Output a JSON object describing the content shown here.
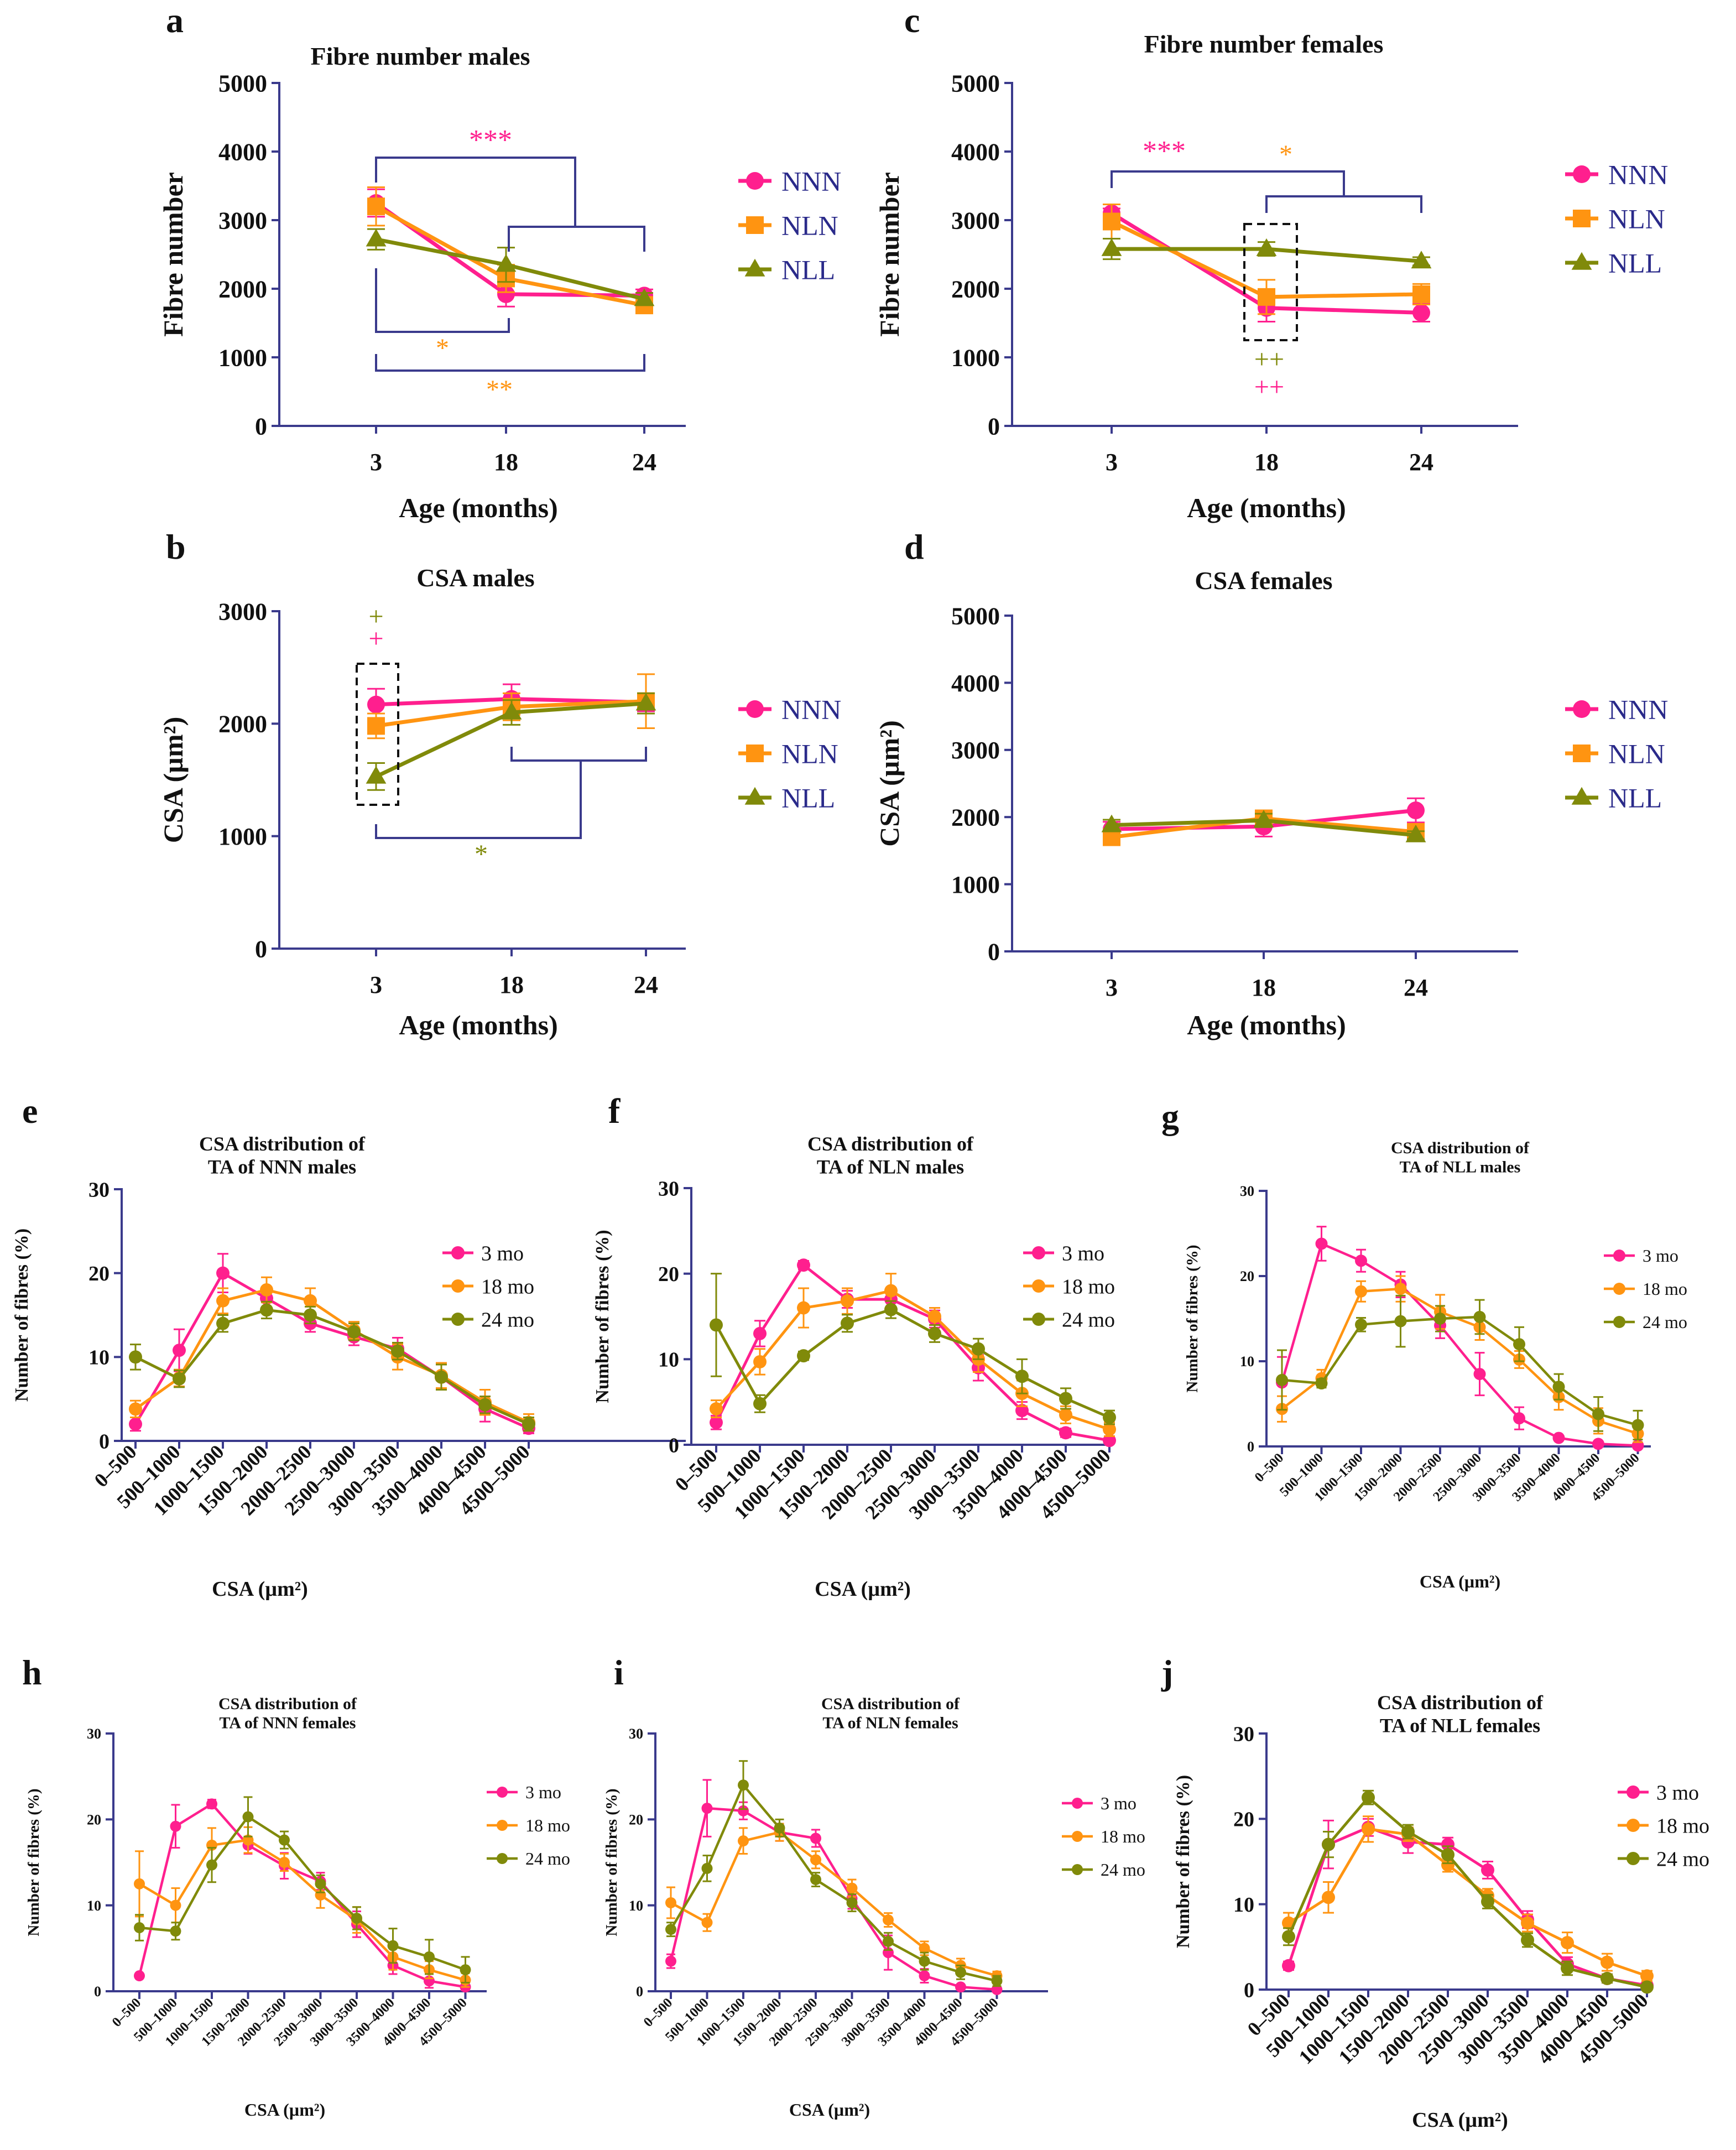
{
  "colors": {
    "NNN": "#ff1f8e",
    "NLN": "#ff9411",
    "NLL": "#808a0a",
    "3 mo": "#ff1f8e",
    "18 mo": "#ff9411",
    "24 mo": "#808a0a",
    "axis": "#3a3a8c",
    "legend_text": "#2a2a8a"
  },
  "chart_data": [
    {
      "id": "a",
      "panel_label": "a",
      "type": "line",
      "title": "Fibre number males",
      "xlabel": "Age (months)",
      "ylabel": "Fibre number",
      "x": [
        "3",
        "18",
        "24"
      ],
      "ylim": [
        0,
        5000
      ],
      "yticks": [
        0,
        1000,
        2000,
        3000,
        4000,
        5000
      ],
      "series": [
        {
          "name": "NNN",
          "marker": "circle",
          "values": [
            3250,
            1920,
            1900
          ],
          "errors": [
            200,
            180,
            90
          ]
        },
        {
          "name": "NLN",
          "marker": "square",
          "values": [
            3200,
            2150,
            1760
          ],
          "errors": [
            280,
            200,
            120
          ]
        },
        {
          "name": "NLL",
          "marker": "triangle",
          "values": [
            2720,
            2350,
            1850
          ],
          "errors": [
            150,
            250,
            90
          ]
        }
      ],
      "annotations": [
        {
          "text": "***",
          "color": "NNN"
        },
        {
          "text": "*",
          "color": "NLN"
        },
        {
          "text": "**",
          "color": "NLN"
        }
      ]
    },
    {
      "id": "b",
      "panel_label": "b",
      "type": "line",
      "title": "CSA males",
      "xlabel": "Age (months)",
      "ylabel": "CSA (µm²)",
      "x": [
        "3",
        "18",
        "24"
      ],
      "ylim": [
        0,
        3000
      ],
      "yticks": [
        0,
        1000,
        2000,
        3000
      ],
      "series": [
        {
          "name": "NNN",
          "marker": "circle",
          "values": [
            2170,
            2220,
            2190
          ],
          "errors": [
            140,
            130,
            80
          ]
        },
        {
          "name": "NLN",
          "marker": "square",
          "values": [
            1980,
            2150,
            2200
          ],
          "errors": [
            110,
            120,
            240
          ]
        },
        {
          "name": "NLL",
          "marker": "triangle",
          "values": [
            1530,
            2100,
            2180
          ],
          "errors": [
            120,
            110,
            90
          ]
        }
      ],
      "annotations": [
        {
          "text": "+",
          "color": "NLL"
        },
        {
          "text": "+",
          "color": "NNN"
        },
        {
          "text": "*",
          "color": "NLL"
        }
      ]
    },
    {
      "id": "c",
      "panel_label": "c",
      "type": "line",
      "title": "Fibre number females",
      "xlabel": "Age (months)",
      "ylabel": "Fibre number",
      "x": [
        "3",
        "18",
        "24"
      ],
      "ylim": [
        0,
        5000
      ],
      "yticks": [
        0,
        1000,
        2000,
        3000,
        4000,
        5000
      ],
      "series": [
        {
          "name": "NNN",
          "marker": "circle",
          "values": [
            3100,
            1720,
            1650
          ],
          "errors": [
            70,
            200,
            130
          ]
        },
        {
          "name": "NLN",
          "marker": "square",
          "values": [
            2980,
            1880,
            1920
          ],
          "errors": [
            250,
            250,
            150
          ]
        },
        {
          "name": "NLL",
          "marker": "triangle",
          "values": [
            2580,
            2580,
            2400
          ],
          "errors": [
            150,
            100,
            60
          ]
        }
      ],
      "annotations": [
        {
          "text": "***",
          "color": "NNN"
        },
        {
          "text": "*",
          "color": "NLN"
        },
        {
          "text": "++",
          "color": "NLL"
        },
        {
          "text": "++",
          "color": "NNN"
        }
      ]
    },
    {
      "id": "d",
      "panel_label": "d",
      "type": "line",
      "title": "CSA females",
      "xlabel": "Age (months)",
      "ylabel": "CSA (µm²)",
      "x": [
        "3",
        "18",
        "24"
      ],
      "ylim": [
        0,
        5000
      ],
      "yticks": [
        0,
        1000,
        2000,
        3000,
        4000,
        5000
      ],
      "series": [
        {
          "name": "NNN",
          "marker": "circle",
          "values": [
            1820,
            1860,
            2100
          ],
          "errors": [
            110,
            150,
            180
          ]
        },
        {
          "name": "NLN",
          "marker": "square",
          "values": [
            1700,
            1980,
            1780
          ],
          "errors": [
            90,
            120,
            80
          ]
        },
        {
          "name": "NLL",
          "marker": "triangle",
          "values": [
            1880,
            1950,
            1730
          ],
          "errors": [
            80,
            100,
            60
          ]
        }
      ]
    },
    {
      "id": "e",
      "panel_label": "e",
      "type": "line",
      "title": "CSA distribution of TA of NNN males",
      "xlabel": "CSA (µm²)",
      "ylabel": "Number of fibres (%)",
      "x": [
        "0–500",
        "500–1000",
        "1000–1500",
        "1500–2000",
        "2000–2500",
        "2500–3000",
        "3000–3500",
        "3500–4000",
        "4000–4500",
        "4500–5000"
      ],
      "ylim": [
        0,
        30
      ],
      "yticks": [
        0,
        10,
        20,
        30
      ],
      "series": [
        {
          "name": "3 mo",
          "values": [
            2.0,
            10.8,
            20.0,
            17.0,
            14.0,
            12.4,
            11.0,
            7.6,
            3.8,
            1.5
          ],
          "errors": [
            0.8,
            2.5,
            2.3,
            1.2,
            1.0,
            1.0,
            1.3,
            1.5,
            1.5,
            0.6
          ]
        },
        {
          "name": "18 mo",
          "values": [
            3.8,
            7.5,
            16.7,
            18.0,
            16.7,
            13.2,
            10.0,
            7.8,
            4.6,
            2.2
          ],
          "errors": [
            1.0,
            1.0,
            1.5,
            1.5,
            1.5,
            1.0,
            1.5,
            1.5,
            1.5,
            1.0
          ]
        },
        {
          "name": "24 mo",
          "values": [
            10.0,
            7.4,
            14.0,
            15.6,
            15.0,
            13.0,
            10.7,
            7.6,
            4.3,
            2.0
          ],
          "errors": [
            1.5,
            1.0,
            1.0,
            1.0,
            1.0,
            1.0,
            1.0,
            1.5,
            1.0,
            0.8
          ]
        }
      ]
    },
    {
      "id": "f",
      "panel_label": "f",
      "type": "line",
      "title": "CSA distribution of TA of NLN males",
      "xlabel": "CSA (µm²)",
      "ylabel": "Number of fibres (%)",
      "x": [
        "0–500",
        "500–1000",
        "1000–1500",
        "1500–2000",
        "2000–2500",
        "2500–3000",
        "3000–3500",
        "3500–4000",
        "4000–4500",
        "4500–5000"
      ],
      "ylim": [
        0,
        30
      ],
      "yticks": [
        0,
        10,
        20,
        30
      ],
      "series": [
        {
          "name": "3 mo",
          "values": [
            2.6,
            13.0,
            21.0,
            17.0,
            17.0,
            14.7,
            9.0,
            4.0,
            1.4,
            0.5
          ],
          "errors": [
            0.8,
            1.5,
            0.5,
            1.0,
            1.0,
            1.0,
            1.5,
            1.0,
            0.5,
            0.3
          ]
        },
        {
          "name": "18 mo",
          "values": [
            4.2,
            9.7,
            16.0,
            16.8,
            18.0,
            15.0,
            10.0,
            6.0,
            3.5,
            1.8
          ],
          "errors": [
            1.0,
            1.5,
            2.3,
            1.5,
            2.0,
            1.0,
            1.5,
            1.5,
            1.0,
            0.8
          ]
        },
        {
          "name": "24 mo",
          "values": [
            14.0,
            4.8,
            10.4,
            14.2,
            15.8,
            13.0,
            11.2,
            8.0,
            5.4,
            3.2
          ],
          "errors": [
            6.0,
            1.0,
            0.5,
            1.0,
            1.0,
            1.0,
            1.2,
            2.0,
            1.2,
            0.8
          ]
        }
      ]
    },
    {
      "id": "g",
      "panel_label": "g",
      "type": "line",
      "title": "CSA distribution of TA of NLL males",
      "xlabel": "CSA (µm²)",
      "ylabel": "Number of fibres (%)",
      "x": [
        "0–500",
        "500–1000",
        "1000–1500",
        "1500–2000",
        "2000–2500",
        "2500–3000",
        "3000–3500",
        "3500–4000",
        "4000–4500",
        "4500–5000"
      ],
      "ylim": [
        0,
        30
      ],
      "yticks": [
        0,
        10,
        20,
        30
      ],
      "series": [
        {
          "name": "3 mo",
          "values": [
            7.5,
            23.8,
            21.8,
            19.0,
            14.2,
            8.5,
            3.3,
            1.0,
            0.3,
            0.1
          ],
          "errors": [
            3.0,
            2.0,
            1.3,
            1.5,
            1.5,
            2.5,
            1.3,
            0.3,
            0.2,
            0.1
          ]
        },
        {
          "name": "18 mo",
          "values": [
            4.4,
            8.0,
            18.2,
            18.5,
            15.8,
            14.0,
            10.2,
            5.8,
            3.0,
            1.5
          ],
          "errors": [
            1.5,
            1.0,
            1.2,
            1.5,
            2.0,
            1.5,
            1.0,
            1.5,
            1.5,
            1.0
          ]
        },
        {
          "name": "24 mo",
          "values": [
            7.8,
            7.4,
            14.3,
            14.7,
            15.0,
            15.2,
            12.0,
            7.0,
            3.8,
            2.5
          ],
          "errors": [
            3.5,
            0.5,
            0.8,
            3.0,
            1.5,
            2.0,
            2.0,
            1.5,
            2.0,
            1.7
          ]
        }
      ]
    },
    {
      "id": "h",
      "panel_label": "h",
      "type": "line",
      "title": "CSA distribution of TA of NNN females",
      "xlabel": "CSA (µm²)",
      "ylabel": "Number of fibres (%)",
      "x": [
        "0–500",
        "500–1000",
        "1000–1500",
        "1500–2000",
        "2000–2500",
        "2500–3000",
        "3000–3500",
        "3500–4000",
        "4000–4500",
        "4500–5000"
      ],
      "ylim": [
        0,
        30
      ],
      "yticks": [
        0,
        10,
        20,
        30
      ],
      "series": [
        {
          "name": "3 mo",
          "values": [
            1.8,
            19.2,
            21.8,
            17.0,
            14.6,
            12.8,
            7.8,
            3.0,
            1.2,
            0.5
          ],
          "errors": [
            0.3,
            2.5,
            0.5,
            1.0,
            1.5,
            1.0,
            1.5,
            1.0,
            0.8,
            0.4
          ]
        },
        {
          "name": "18 mo",
          "values": [
            12.5,
            10.0,
            17.0,
            17.6,
            15.0,
            11.2,
            8.3,
            4.0,
            2.5,
            1.3
          ],
          "errors": [
            3.8,
            2.0,
            2.0,
            1.5,
            1.0,
            1.5,
            1.5,
            1.5,
            1.0,
            0.8
          ]
        },
        {
          "name": "24 mo",
          "values": [
            7.4,
            7.0,
            14.7,
            20.3,
            17.6,
            12.5,
            8.5,
            5.3,
            4.0,
            2.5
          ],
          "errors": [
            1.5,
            1.0,
            2.0,
            2.3,
            1.0,
            1.0,
            1.3,
            2.0,
            2.0,
            1.5
          ]
        }
      ]
    },
    {
      "id": "i",
      "panel_label": "i",
      "type": "line",
      "title": "CSA distribution of TA of NLN females",
      "xlabel": "CSA (µm²)",
      "ylabel": "Number of fibres (%)",
      "x": [
        "0–500",
        "500–1000",
        "1000–1500",
        "1500–2000",
        "2000–2500",
        "2500–3000",
        "3000–3500",
        "3500–4000",
        "4000–4500",
        "4500–5000"
      ],
      "ylim": [
        0,
        30
      ],
      "yticks": [
        0,
        10,
        20,
        30
      ],
      "series": [
        {
          "name": "3 mo",
          "values": [
            3.5,
            21.3,
            21.0,
            18.5,
            17.8,
            10.8,
            4.5,
            1.8,
            0.5,
            0.2
          ],
          "errors": [
            0.8,
            3.3,
            1.0,
            1.0,
            1.0,
            1.2,
            2.0,
            0.8,
            0.3,
            0.2
          ]
        },
        {
          "name": "18 mo",
          "values": [
            10.3,
            8.0,
            17.5,
            18.5,
            15.3,
            12.0,
            8.3,
            5.0,
            3.0,
            1.8
          ],
          "errors": [
            1.8,
            1.0,
            1.5,
            1.0,
            1.0,
            1.0,
            0.8,
            0.8,
            0.8,
            0.5
          ]
        },
        {
          "name": "24 mo",
          "values": [
            7.2,
            14.3,
            24.0,
            19.0,
            13.0,
            10.3,
            5.8,
            3.5,
            2.2,
            1.2
          ],
          "errors": [
            0.8,
            1.5,
            2.8,
            1.0,
            0.8,
            1.0,
            1.0,
            1.0,
            0.8,
            0.6
          ]
        }
      ]
    },
    {
      "id": "j",
      "panel_label": "j",
      "type": "line",
      "title": "CSA distribution of TA of NLL females",
      "xlabel": "CSA (µm²)",
      "ylabel": "Number of fibres (%)",
      "x": [
        "0–500",
        "500–1000",
        "1000–1500",
        "1500–2000",
        "2000–2500",
        "2500–3000",
        "3000–3500",
        "3500–4000",
        "4000–4500",
        "4500–5000"
      ],
      "ylim": [
        0,
        30
      ],
      "yticks": [
        0,
        10,
        20,
        30
      ],
      "series": [
        {
          "name": "3 mo",
          "values": [
            2.8,
            17.0,
            19.0,
            17.3,
            17.0,
            14.0,
            8.2,
            3.0,
            1.3,
            0.5
          ],
          "errors": [
            0.5,
            2.8,
            1.0,
            1.3,
            0.8,
            1.0,
            1.0,
            0.8,
            0.5,
            0.3
          ]
        },
        {
          "name": "18 mo",
          "values": [
            7.8,
            10.8,
            18.8,
            18.2,
            14.6,
            11.0,
            7.8,
            5.5,
            3.2,
            1.6
          ],
          "errors": [
            1.2,
            1.8,
            1.5,
            0.8,
            0.8,
            0.8,
            1.0,
            1.2,
            1.0,
            0.6
          ]
        },
        {
          "name": "24 mo",
          "values": [
            6.2,
            17.0,
            22.5,
            18.5,
            15.8,
            10.3,
            5.8,
            2.5,
            1.3,
            0.3
          ],
          "errors": [
            1.0,
            1.5,
            0.8,
            0.8,
            1.0,
            0.8,
            0.8,
            0.8,
            0.5,
            0.2
          ]
        }
      ]
    }
  ]
}
